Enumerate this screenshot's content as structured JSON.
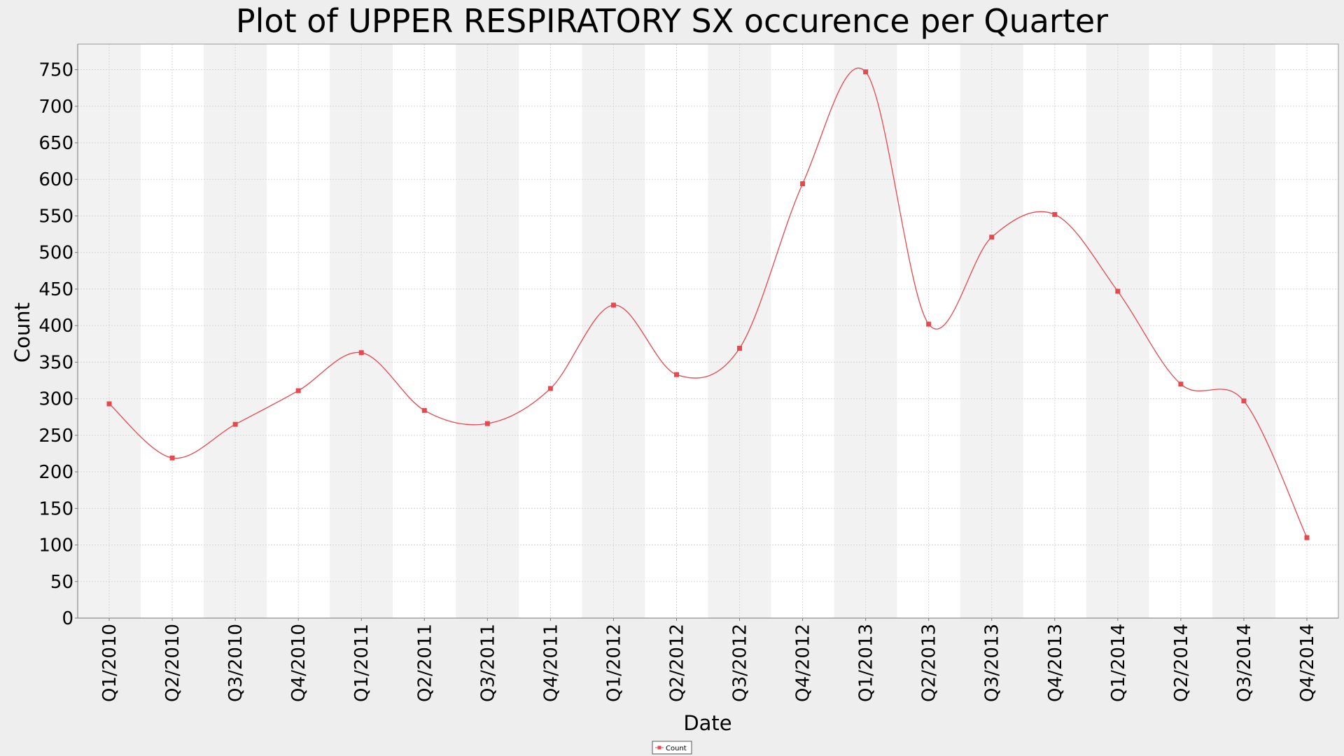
{
  "chart_data": {
    "type": "line",
    "title": "Plot of UPPER RESPIRATORY SX occurence per Quarter",
    "xlabel": "Date",
    "ylabel": "Count",
    "categories": [
      "Q1/2010",
      "Q2/2010",
      "Q3/2010",
      "Q4/2010",
      "Q1/2011",
      "Q2/2011",
      "Q3/2011",
      "Q4/2011",
      "Q1/2012",
      "Q2/2012",
      "Q3/2012",
      "Q4/2012",
      "Q1/2013",
      "Q2/2013",
      "Q3/2013",
      "Q4/2013",
      "Q1/2014",
      "Q2/2014",
      "Q3/2014",
      "Q4/2014"
    ],
    "series": [
      {
        "name": "Count",
        "color": "#e8474c",
        "values": [
          293,
          219,
          265,
          311,
          363,
          284,
          266,
          314,
          428,
          333,
          369,
          594,
          747,
          402,
          521,
          552,
          447,
          320,
          297,
          110
        ]
      }
    ],
    "yticks": [
      0,
      50,
      100,
      150,
      200,
      250,
      300,
      350,
      400,
      450,
      500,
      550,
      600,
      650,
      700,
      750
    ],
    "ylim": [
      0,
      785
    ],
    "grid": true,
    "line_style": "smooth spline",
    "legend_position": "bottom-center",
    "colors": {
      "band_dark": "#f2f2f2",
      "band_light": "#ffffff",
      "grid": "#d6d6d6",
      "frame": "#9a9a9a",
      "page": "#eeeeee"
    }
  }
}
